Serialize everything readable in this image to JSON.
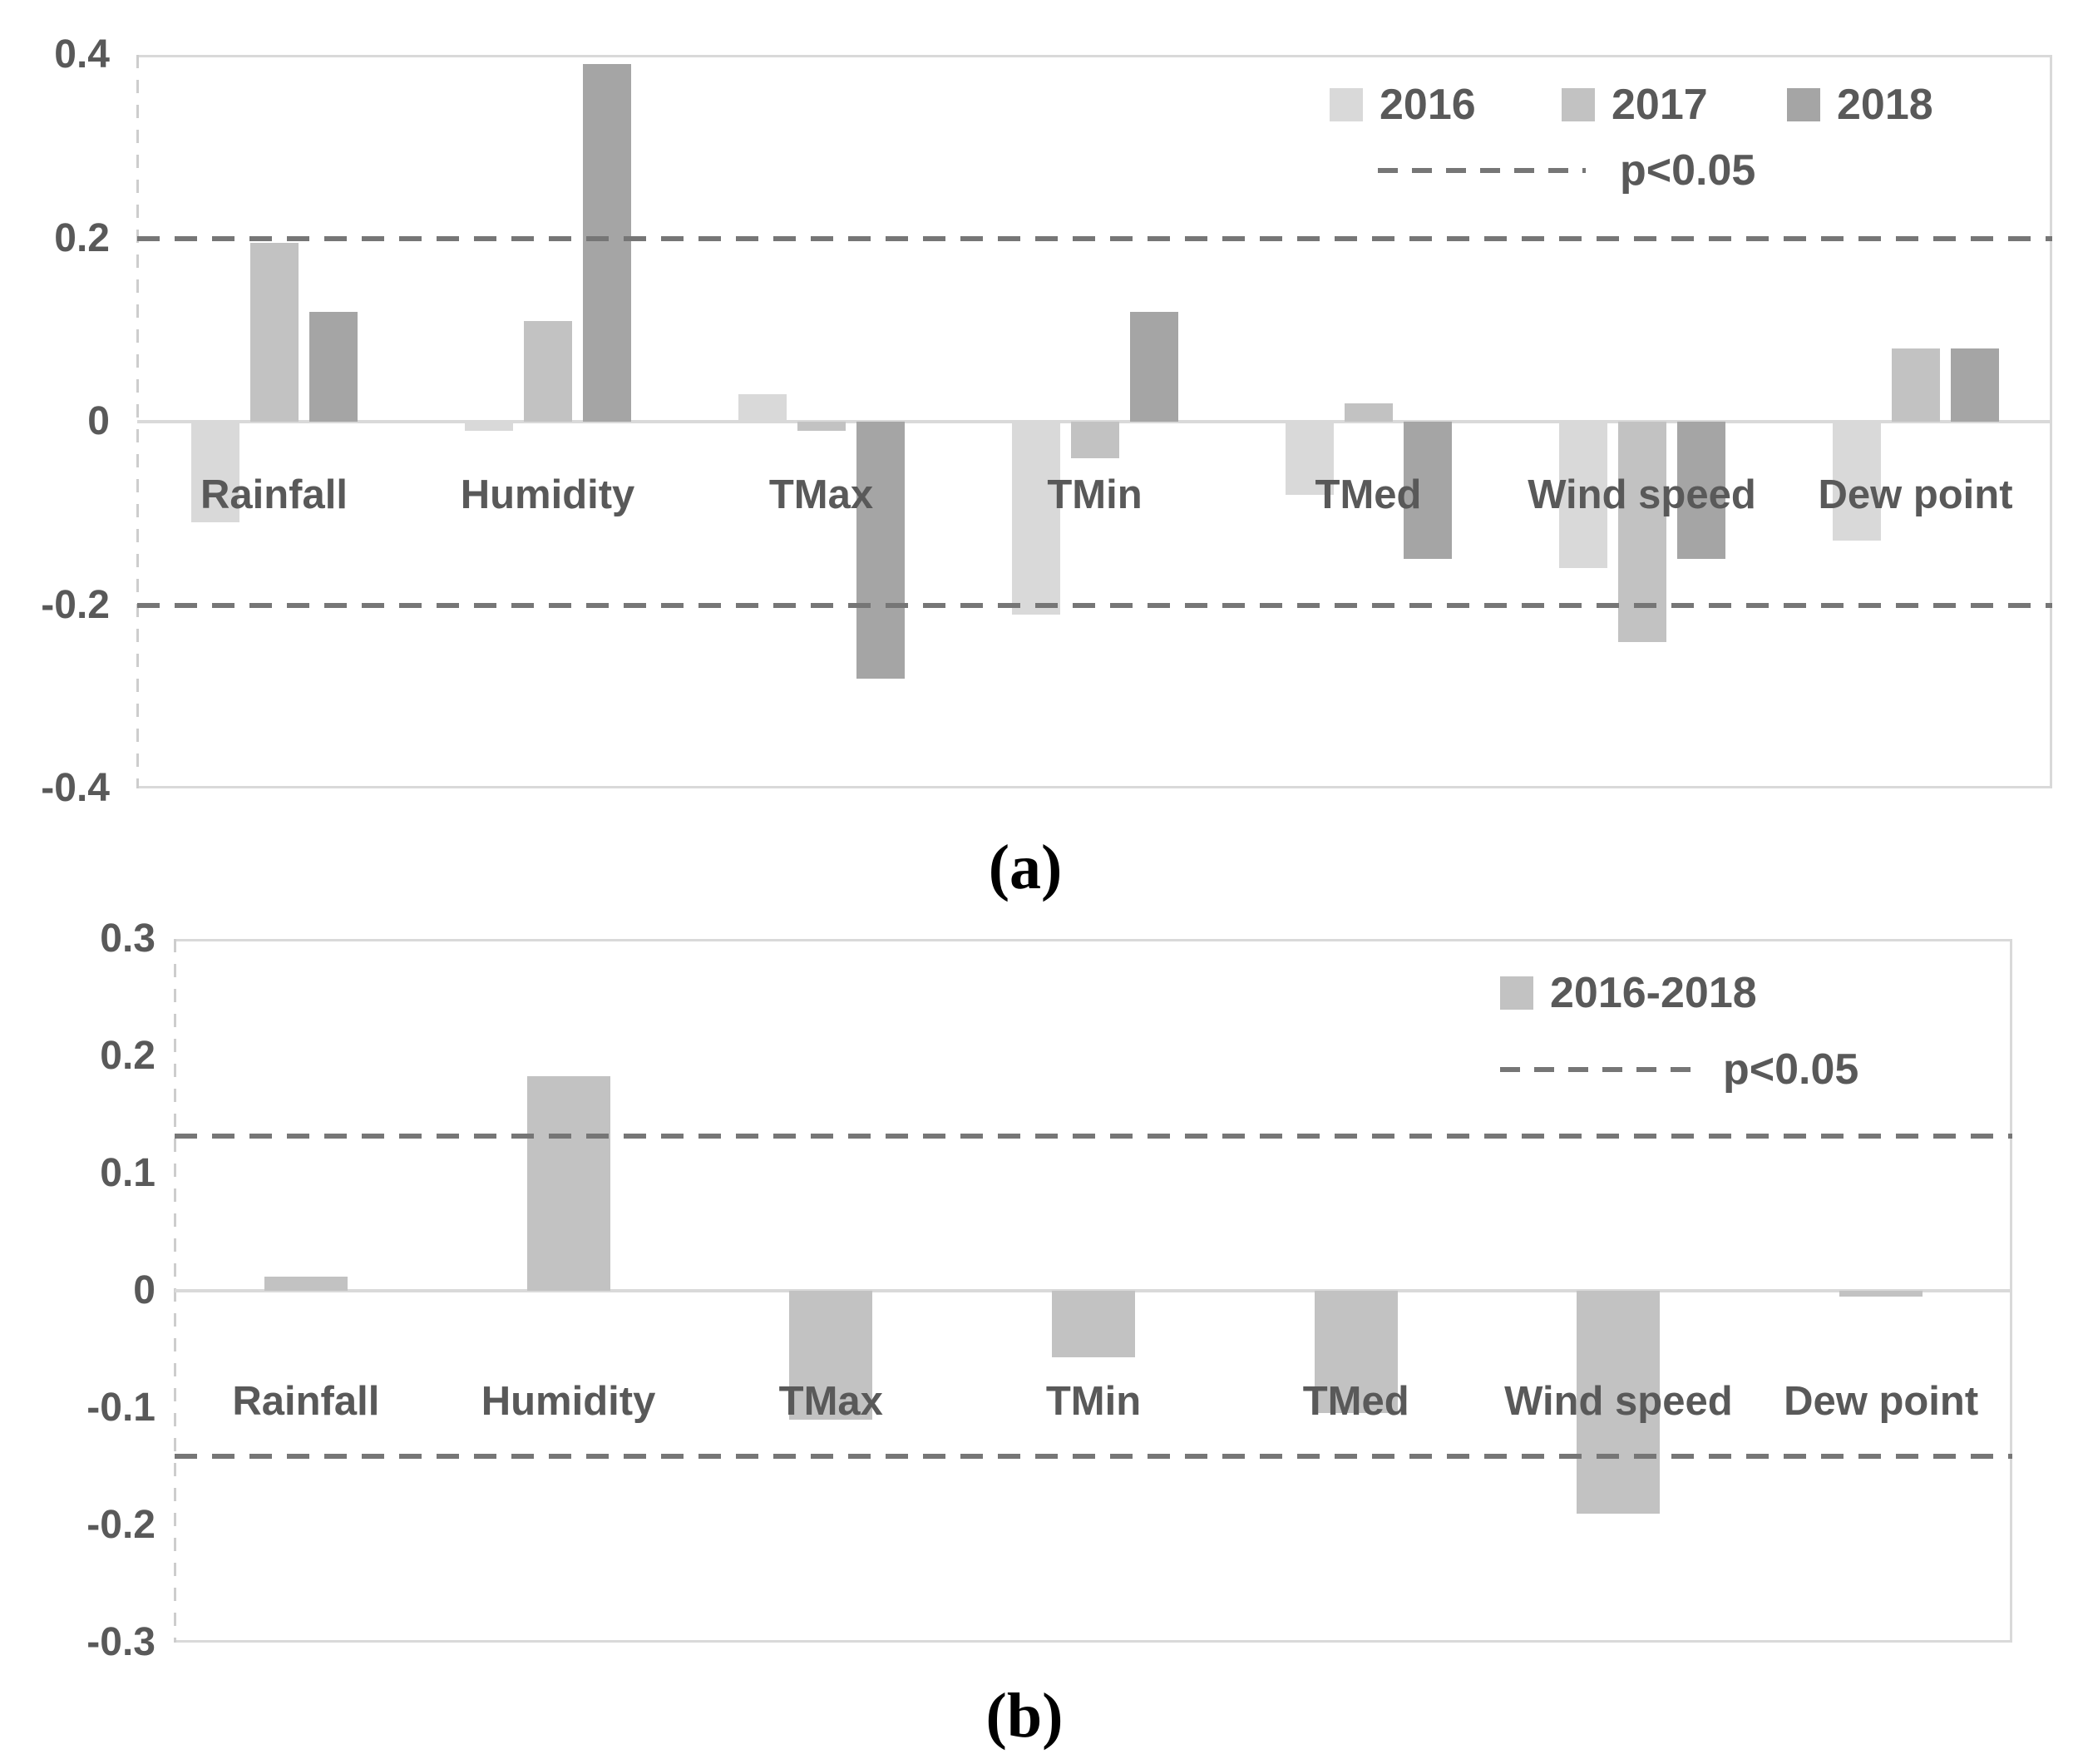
{
  "figure": {
    "background": "#ffffff",
    "text_color": "#595959",
    "frame_color": "#d9d9d9",
    "dash_color": "#767676"
  },
  "chart_data": [
    {
      "id": "a",
      "type": "bar",
      "title": "",
      "caption": "(a)",
      "categories": [
        "Rainfall",
        "Humidity",
        "TMax",
        "TMin",
        "TMed",
        "Wind speed",
        "Dew point"
      ],
      "series": [
        {
          "name": "2016",
          "color": "#d9d9d9",
          "values": [
            -0.11,
            -0.01,
            0.03,
            -0.21,
            -0.08,
            -0.16,
            -0.13
          ]
        },
        {
          "name": "2017",
          "color": "#c2c2c2",
          "values": [
            0.195,
            0.11,
            -0.01,
            -0.04,
            0.02,
            -0.24,
            0.08
          ]
        },
        {
          "name": "2018",
          "color": "#a5a5a5",
          "values": [
            0.12,
            0.39,
            -0.28,
            0.12,
            -0.15,
            -0.15,
            0.08
          ]
        }
      ],
      "ylim": [
        -0.4,
        0.4
      ],
      "yticks": [
        0.4,
        0.2,
        0,
        -0.2,
        -0.4
      ],
      "ytick_labels": [
        "0.4",
        "0.2",
        "0",
        "-0.2",
        "-0.4"
      ],
      "thresholds": {
        "label": "p<0.05",
        "values": [
          0.2,
          -0.2
        ]
      },
      "legend_position": "top-right",
      "grid": false
    },
    {
      "id": "b",
      "type": "bar",
      "title": "",
      "caption": "(b)",
      "categories": [
        "Rainfall",
        "Humidity",
        "TMax",
        "TMin",
        "TMed",
        "Wind speed",
        "Dew point"
      ],
      "series": [
        {
          "name": "2016-2018",
          "color": "#c2c2c2",
          "values": [
            0.012,
            0.183,
            -0.11,
            -0.057,
            -0.104,
            -0.19,
            -0.005
          ]
        }
      ],
      "ylim": [
        -0.3,
        0.3
      ],
      "yticks": [
        0.3,
        0.2,
        0.1,
        0,
        -0.1,
        -0.2,
        -0.3
      ],
      "ytick_labels": [
        "0.3",
        "0.2",
        "0.1",
        "0",
        "-0.1",
        "-0.2",
        "-0.3"
      ],
      "thresholds": {
        "label": "p<0.05",
        "values": [
          0.132,
          -0.141
        ]
      },
      "legend_position": "top-right",
      "grid": false
    }
  ]
}
